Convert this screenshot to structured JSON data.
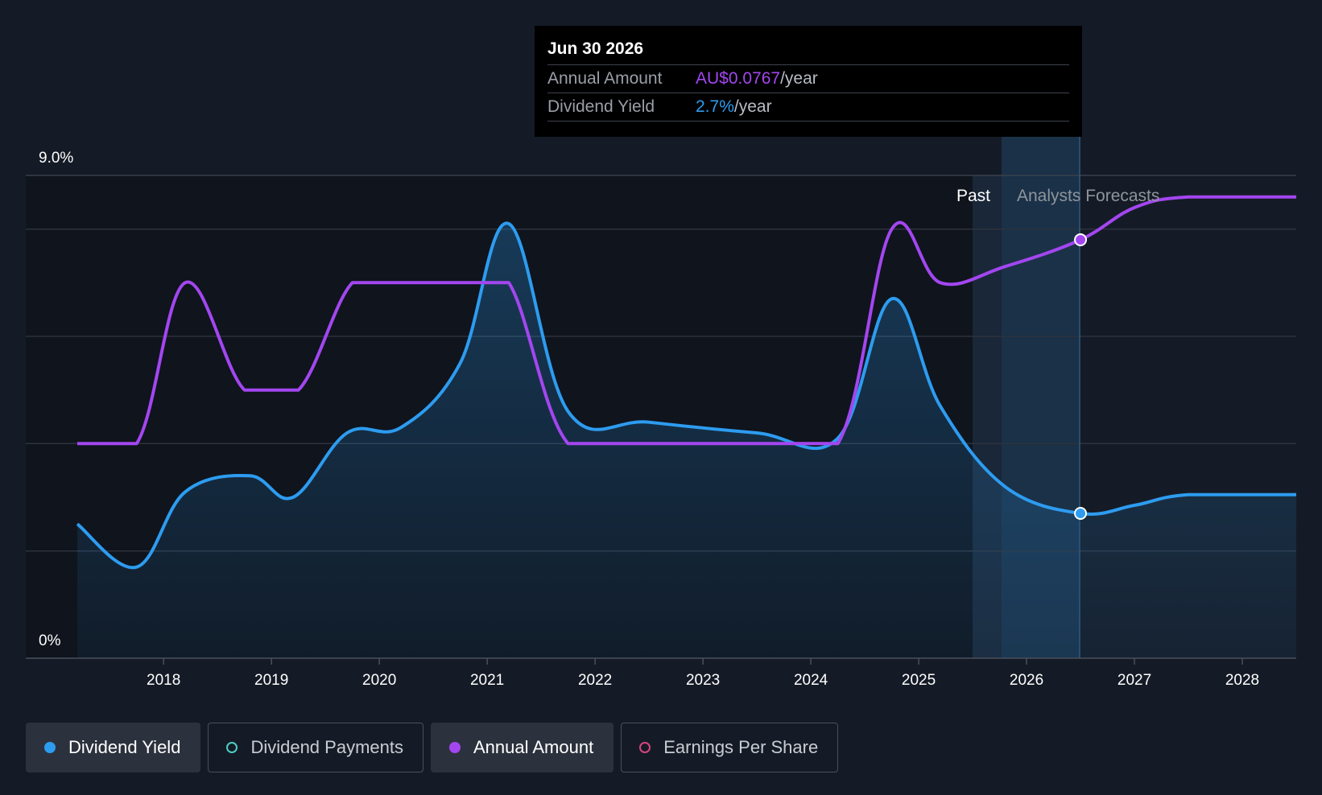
{
  "chart_data": {
    "type": "line",
    "title": "",
    "y_top_label": "9.0%",
    "y_bottom_label": "0%",
    "ylim": [
      0,
      9
    ],
    "xlim": [
      2017.2,
      2028.5
    ],
    "x_ticks": [
      "2018",
      "2019",
      "2020",
      "2021",
      "2022",
      "2023",
      "2024",
      "2025",
      "2026",
      "2027",
      "2028"
    ],
    "region_labels": {
      "past": "Past",
      "forecast": "Analysts Forecasts"
    },
    "past_end_x": 2025.5,
    "hover_x": 2026.5,
    "series": [
      {
        "name": "Dividend Yield",
        "color": "#2d9cf0",
        "x": [
          2017.2,
          2017.75,
          2018.2,
          2018.8,
          2019.2,
          2019.7,
          2020.2,
          2020.75,
          2021.2,
          2021.75,
          2022.5,
          2023.5,
          2024.25,
          2024.75,
          2025.2,
          2025.8,
          2026.5,
          2027.0,
          2027.5,
          2028.5
        ],
        "y": [
          2.5,
          1.7,
          3.1,
          3.4,
          3.0,
          4.2,
          4.3,
          5.5,
          8.1,
          4.6,
          4.4,
          4.2,
          4.1,
          6.7,
          4.7,
          3.2,
          2.7,
          2.85,
          3.05,
          3.05
        ]
      },
      {
        "name": "Annual Amount",
        "color": "#a346f0",
        "x": [
          2017.2,
          2017.75,
          2018.2,
          2018.75,
          2019.25,
          2019.75,
          2020.2,
          2020.75,
          2021.2,
          2021.75,
          2022.5,
          2023.5,
          2024.25,
          2024.75,
          2025.2,
          2025.8,
          2026.5,
          2027.0,
          2027.5,
          2028.5
        ],
        "y": [
          4.0,
          4.0,
          7.0,
          5.0,
          5.0,
          7.0,
          7.0,
          7.0,
          7.0,
          4.0,
          4.0,
          4.0,
          4.0,
          8.0,
          7.0,
          7.3,
          7.8,
          8.4,
          8.6,
          8.6
        ]
      }
    ]
  },
  "tooltip": {
    "date": "Jun 30 2026",
    "annual_label": "Annual Amount",
    "annual_value": "AU$0.0767",
    "annual_unit": "/year",
    "yield_label": "Dividend Yield",
    "yield_value": "2.7%",
    "yield_unit": "/year"
  },
  "legend": [
    {
      "label": "Dividend Yield",
      "color": "#2d9cf0",
      "active": true
    },
    {
      "label": "Dividend Payments",
      "color": "#4ecdc4",
      "active": false
    },
    {
      "label": "Annual Amount",
      "color": "#a346f0",
      "active": true
    },
    {
      "label": "Earnings Per Share",
      "color": "#d6457f",
      "active": false
    }
  ],
  "colors": {
    "background": "#151b26",
    "grid": "#2c323d",
    "past_region": "#0f141d",
    "forecast_region": "#1a3148",
    "tooltip_annual": "#a346f0",
    "tooltip_yield": "#2d9cf0"
  }
}
